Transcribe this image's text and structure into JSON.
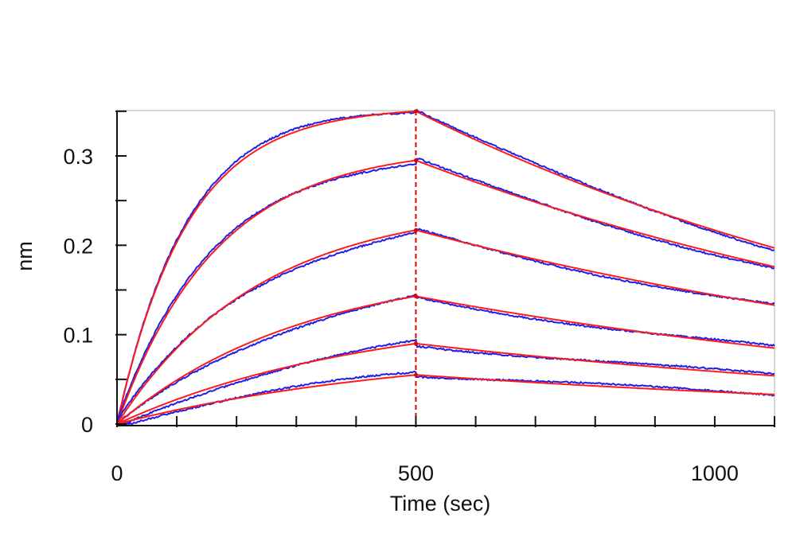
{
  "chart_data": {
    "type": "line",
    "title": "",
    "xlabel": "Time (sec)",
    "ylabel": "nm",
    "xlim": [
      0,
      1100
    ],
    "ylim": [
      0,
      0.35
    ],
    "x_ticks": [
      0,
      500,
      1000
    ],
    "x_tick_labels": [
      "0",
      "500",
      "1000"
    ],
    "y_ticks": [
      0,
      0.1,
      0.2,
      0.3
    ],
    "y_tick_labels": [
      "0",
      "0.1",
      "0.2",
      "0.3"
    ],
    "grid": false,
    "legend": "none",
    "association_end": 500,
    "colors": {
      "measured": "#1f1fe6",
      "fit": "#ff1a1a",
      "marker": "#e60000",
      "axis": "#111111",
      "frame": "#c8c8c8"
    },
    "series": [
      {
        "peak": 0.35,
        "end": 0.197
      },
      {
        "peak": 0.295,
        "end": 0.176
      },
      {
        "peak": 0.217,
        "end": 0.133
      },
      {
        "peak": 0.143,
        "end": 0.085
      },
      {
        "peak": 0.09,
        "end": 0.054
      },
      {
        "peak": 0.055,
        "end": 0.033
      }
    ]
  }
}
